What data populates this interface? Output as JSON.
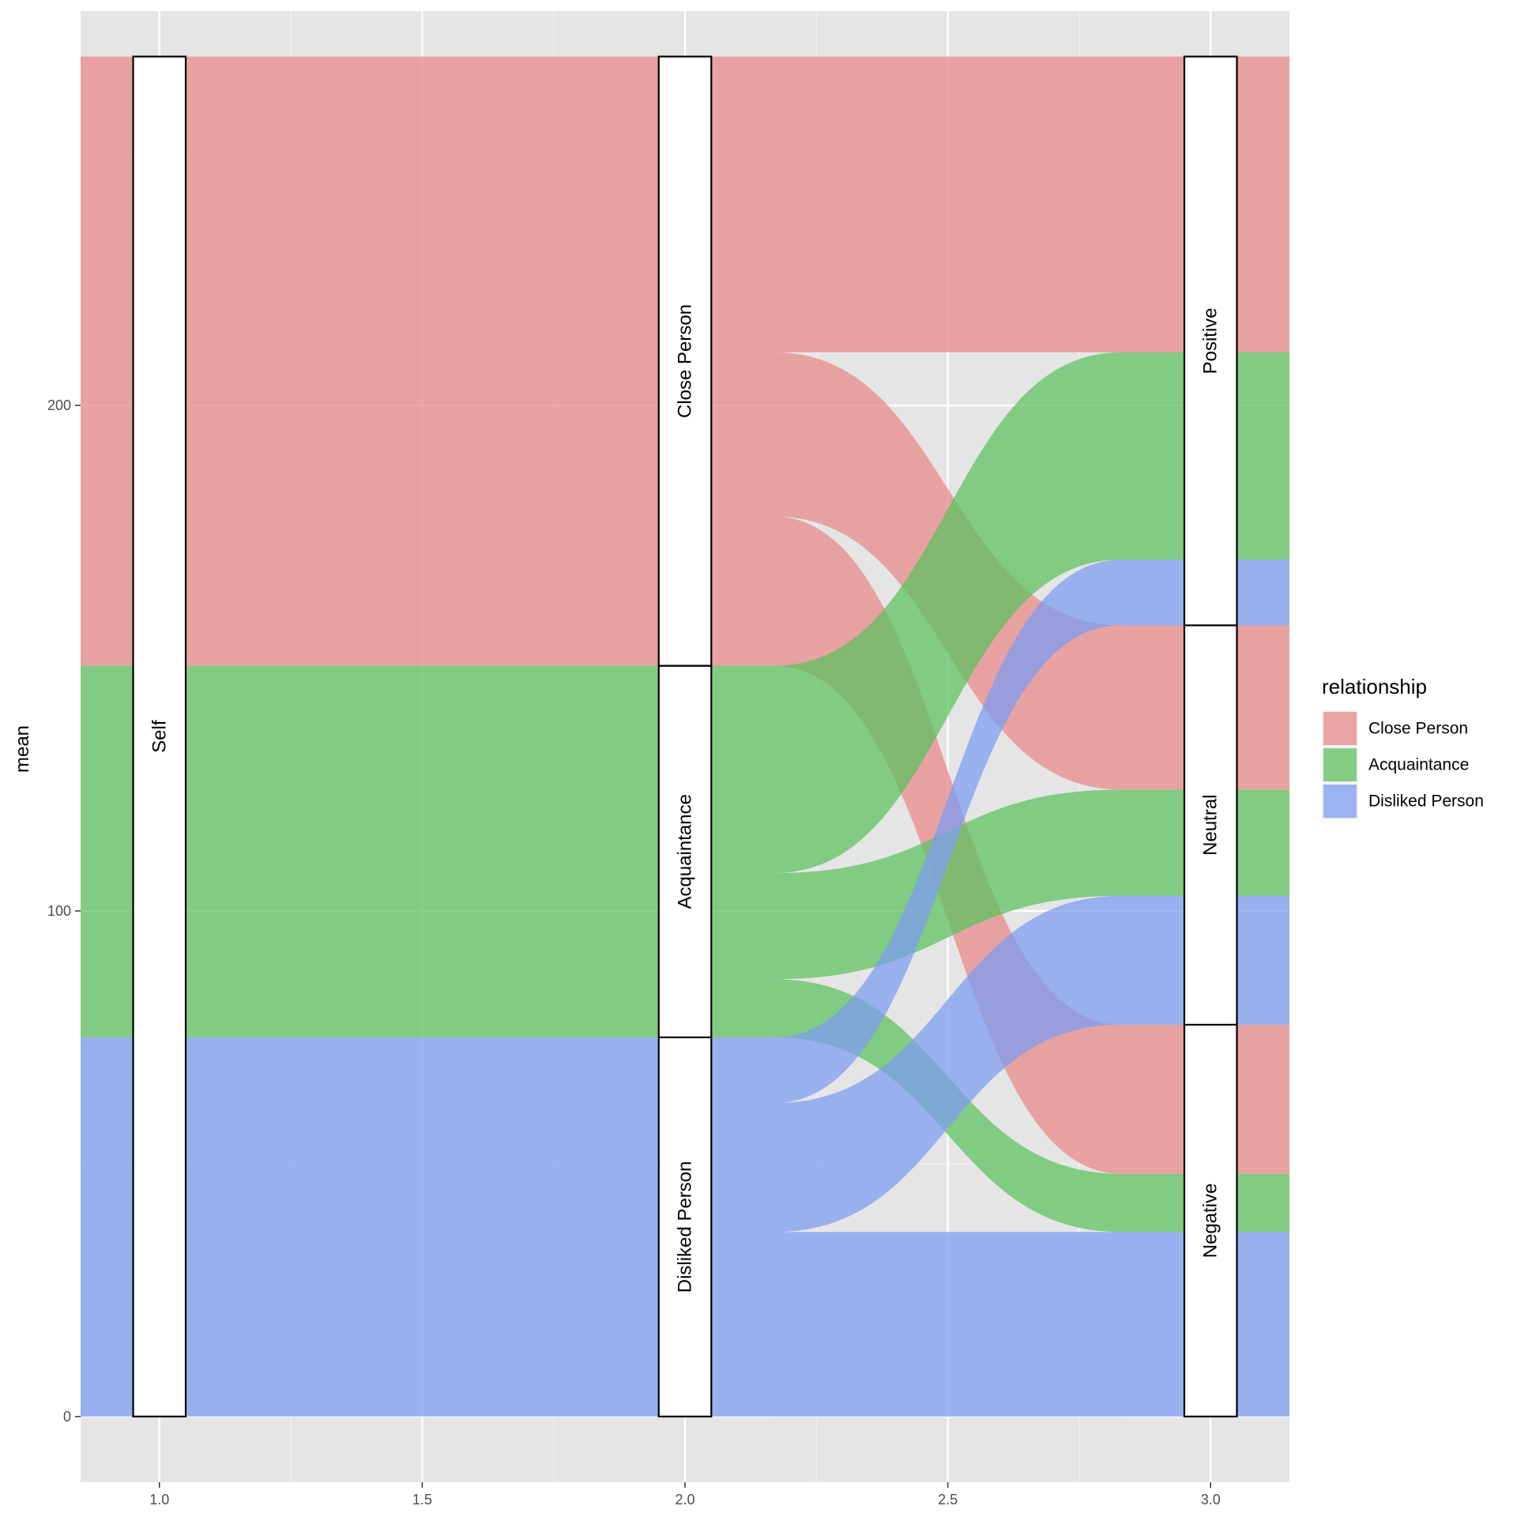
{
  "chart_data": {
    "type": "alluvial",
    "title": "",
    "xlabel": "",
    "ylabel": "mean",
    "xlim": [
      0.85,
      3.15
    ],
    "ylim": [
      -13,
      278
    ],
    "x_ticks": [
      {
        "value": 1.0,
        "label": "1.0"
      },
      {
        "value": 1.5,
        "label": "1.5"
      },
      {
        "value": 2.0,
        "label": "2.0"
      },
      {
        "value": 2.5,
        "label": "2.5"
      },
      {
        "value": 3.0,
        "label": "3.0"
      }
    ],
    "x_minor_ticks": [
      1.25,
      1.75,
      2.25,
      2.75
    ],
    "y_ticks": [
      {
        "value": 0,
        "label": "0"
      },
      {
        "value": 100,
        "label": "100"
      },
      {
        "value": 200,
        "label": "200"
      }
    ],
    "y_minor_ticks": [
      50,
      150,
      250
    ],
    "grid": true,
    "panel_background": "#e5e5e5",
    "colors": {
      "Close Person": "#e88a8a",
      "Acquaintance": "#5fc160",
      "Disliked Person": "#7e9df0"
    },
    "flow_opacity": 0.75,
    "legend": {
      "title": "relationship",
      "position": "right",
      "entries": [
        "Close Person",
        "Acquaintance",
        "Disliked Person"
      ]
    },
    "axes": [
      {
        "x": 1,
        "strata": [
          {
            "label": "Self",
            "from": 0,
            "to": 269
          }
        ]
      },
      {
        "x": 2,
        "strata": [
          {
            "label": "Disliked Person",
            "from": 0,
            "to": 75
          },
          {
            "label": "Acquaintance",
            "from": 75,
            "to": 148.5
          },
          {
            "label": "Close Person",
            "from": 148.5,
            "to": 269
          }
        ]
      },
      {
        "x": 3,
        "strata": [
          {
            "label": "Negative",
            "from": 0,
            "to": 77.5
          },
          {
            "label": "Neutral",
            "from": 77.5,
            "to": 156.5
          },
          {
            "label": "Positive",
            "from": 156.5,
            "to": 269
          }
        ]
      }
    ],
    "flows_1_to_2": [
      {
        "relationship": "Disliked Person",
        "from": [
          0,
          75
        ],
        "to": [
          0,
          75
        ]
      },
      {
        "relationship": "Acquaintance",
        "from": [
          75,
          148.5
        ],
        "to": [
          75,
          148.5
        ]
      },
      {
        "relationship": "Close Person",
        "from": [
          148.5,
          269
        ],
        "to": [
          148.5,
          269
        ]
      }
    ],
    "flows_2_to_3": [
      {
        "relationship": "Disliked Person",
        "response": "Negative",
        "value": 36.5,
        "from": [
          0,
          36.5
        ],
        "to": [
          0,
          36.5
        ]
      },
      {
        "relationship": "Acquaintance",
        "response": "Negative",
        "value": 11.5,
        "from": [
          75,
          86.5
        ],
        "to": [
          36.5,
          48
        ]
      },
      {
        "relationship": "Close Person",
        "response": "Negative",
        "value": 29.5,
        "from": [
          148.5,
          178
        ],
        "to": [
          48,
          77.5
        ]
      },
      {
        "relationship": "Disliked Person",
        "response": "Neutral",
        "value": 25.5,
        "from": [
          36.5,
          62
        ],
        "to": [
          77.5,
          103
        ]
      },
      {
        "relationship": "Acquaintance",
        "response": "Neutral",
        "value": 21,
        "from": [
          86.5,
          107.5
        ],
        "to": [
          103,
          124
        ]
      },
      {
        "relationship": "Close Person",
        "response": "Neutral",
        "value": 32.5,
        "from": [
          178,
          210.5
        ],
        "to": [
          124,
          156.5
        ]
      },
      {
        "relationship": "Disliked Person",
        "response": "Positive",
        "value": 13,
        "from": [
          62,
          75
        ],
        "to": [
          156.5,
          169.5
        ]
      },
      {
        "relationship": "Acquaintance",
        "response": "Positive",
        "value": 41,
        "from": [
          107.5,
          148.5
        ],
        "to": [
          169.5,
          210.5
        ]
      },
      {
        "relationship": "Close Person",
        "response": "Positive",
        "value": 58.5,
        "from": [
          210.5,
          269
        ],
        "to": [
          210.5,
          269
        ]
      }
    ]
  }
}
